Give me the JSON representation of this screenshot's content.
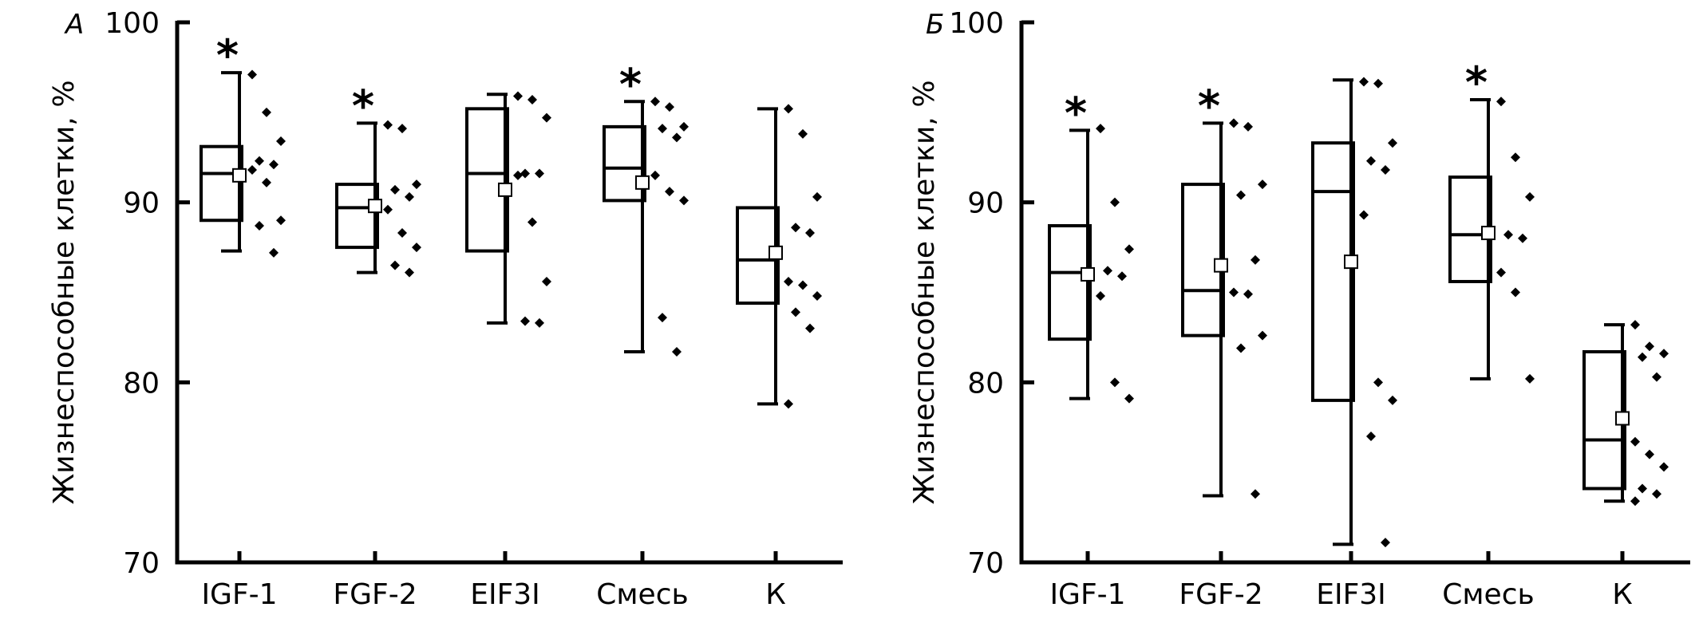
{
  "chart_data": [
    {
      "type": "box",
      "panel": "А",
      "ylabel": "Жизнеспособные клетки, %",
      "ylim": [
        70,
        100
      ],
      "yticks": [
        70,
        80,
        90,
        100
      ],
      "categories": [
        "IGF-1",
        "FGF-2",
        "EIF3I",
        "Смесь",
        "К"
      ],
      "groups": [
        {
          "category": "IGF-1",
          "min": 87.3,
          "q1": 89.0,
          "median": 91.6,
          "q3": 93.1,
          "max": 97.2,
          "mean": 91.5,
          "significant": true,
          "points": [
            97.1,
            95.0,
            93.4,
            92.3,
            92.1,
            91.8,
            91.1,
            89.0,
            88.7,
            87.2
          ]
        },
        {
          "category": "FGF-2",
          "min": 86.1,
          "q1": 87.5,
          "median": 89.7,
          "q3": 91.0,
          "max": 94.4,
          "mean": 89.8,
          "significant": true,
          "points": [
            94.3,
            94.1,
            91.0,
            90.7,
            90.3,
            89.6,
            88.3,
            87.5,
            86.5,
            86.1
          ]
        },
        {
          "category": "EIF3I",
          "min": 83.3,
          "q1": 87.3,
          "median": 91.6,
          "q3": 95.2,
          "max": 96.0,
          "mean": 90.7,
          "significant": false,
          "points": [
            95.9,
            95.7,
            94.7,
            91.6,
            91.6,
            91.5,
            88.9,
            85.6,
            83.4,
            83.3
          ]
        },
        {
          "category": "Смесь",
          "min": 81.7,
          "q1": 90.1,
          "median": 91.9,
          "q3": 94.2,
          "max": 95.6,
          "mean": 91.1,
          "significant": true,
          "points": [
            95.6,
            95.3,
            94.2,
            94.1,
            93.6,
            91.5,
            90.6,
            90.1,
            83.6,
            81.7
          ]
        },
        {
          "category": "К",
          "min": 78.8,
          "q1": 84.4,
          "median": 86.8,
          "q3": 89.7,
          "max": 95.2,
          "mean": 87.2,
          "significant": false,
          "points": [
            95.2,
            93.8,
            90.3,
            88.6,
            88.3,
            85.6,
            85.4,
            84.8,
            83.9,
            83.0,
            78.8
          ]
        }
      ]
    },
    {
      "type": "box",
      "panel": "Б",
      "ylabel": "Жизнеспособные клетки, %",
      "ylim": [
        70,
        100
      ],
      "yticks": [
        70,
        80,
        90,
        100
      ],
      "categories": [
        "IGF-1",
        "FGF-2",
        "EIF3I",
        "Смесь",
        "К"
      ],
      "groups": [
        {
          "category": "IGF-1",
          "min": 79.1,
          "q1": 82.4,
          "median": 86.1,
          "q3": 88.7,
          "max": 94.0,
          "mean": 86.0,
          "significant": true,
          "points": [
            94.1,
            90.0,
            87.4,
            86.2,
            85.9,
            84.8,
            80.0,
            79.1
          ]
        },
        {
          "category": "FGF-2",
          "min": 73.7,
          "q1": 82.6,
          "median": 85.1,
          "q3": 91.0,
          "max": 94.4,
          "mean": 86.5,
          "significant": true,
          "points": [
            94.4,
            94.2,
            91.0,
            90.4,
            86.8,
            85.0,
            84.9,
            82.6,
            81.9,
            73.8
          ]
        },
        {
          "category": "EIF3I",
          "min": 71.0,
          "q1": 79.0,
          "median": 90.6,
          "q3": 93.3,
          "max": 96.8,
          "mean": 86.7,
          "significant": false,
          "points": [
            96.7,
            96.6,
            93.3,
            92.3,
            91.8,
            89.3,
            80.0,
            79.0,
            77.0,
            71.1
          ]
        },
        {
          "category": "Смесь",
          "min": 80.2,
          "q1": 85.6,
          "median": 88.2,
          "q3": 91.4,
          "max": 95.7,
          "mean": 88.3,
          "significant": true,
          "points": [
            95.6,
            92.5,
            90.3,
            88.2,
            88.0,
            86.1,
            85.0,
            80.2
          ]
        },
        {
          "category": "К",
          "min": 73.4,
          "q1": 74.1,
          "median": 76.8,
          "q3": 81.7,
          "max": 83.2,
          "mean": 78.0,
          "significant": false,
          "points": [
            83.2,
            82.0,
            81.6,
            81.4,
            80.3,
            76.7,
            76.0,
            75.3,
            74.1,
            73.8,
            73.4
          ]
        }
      ]
    }
  ]
}
